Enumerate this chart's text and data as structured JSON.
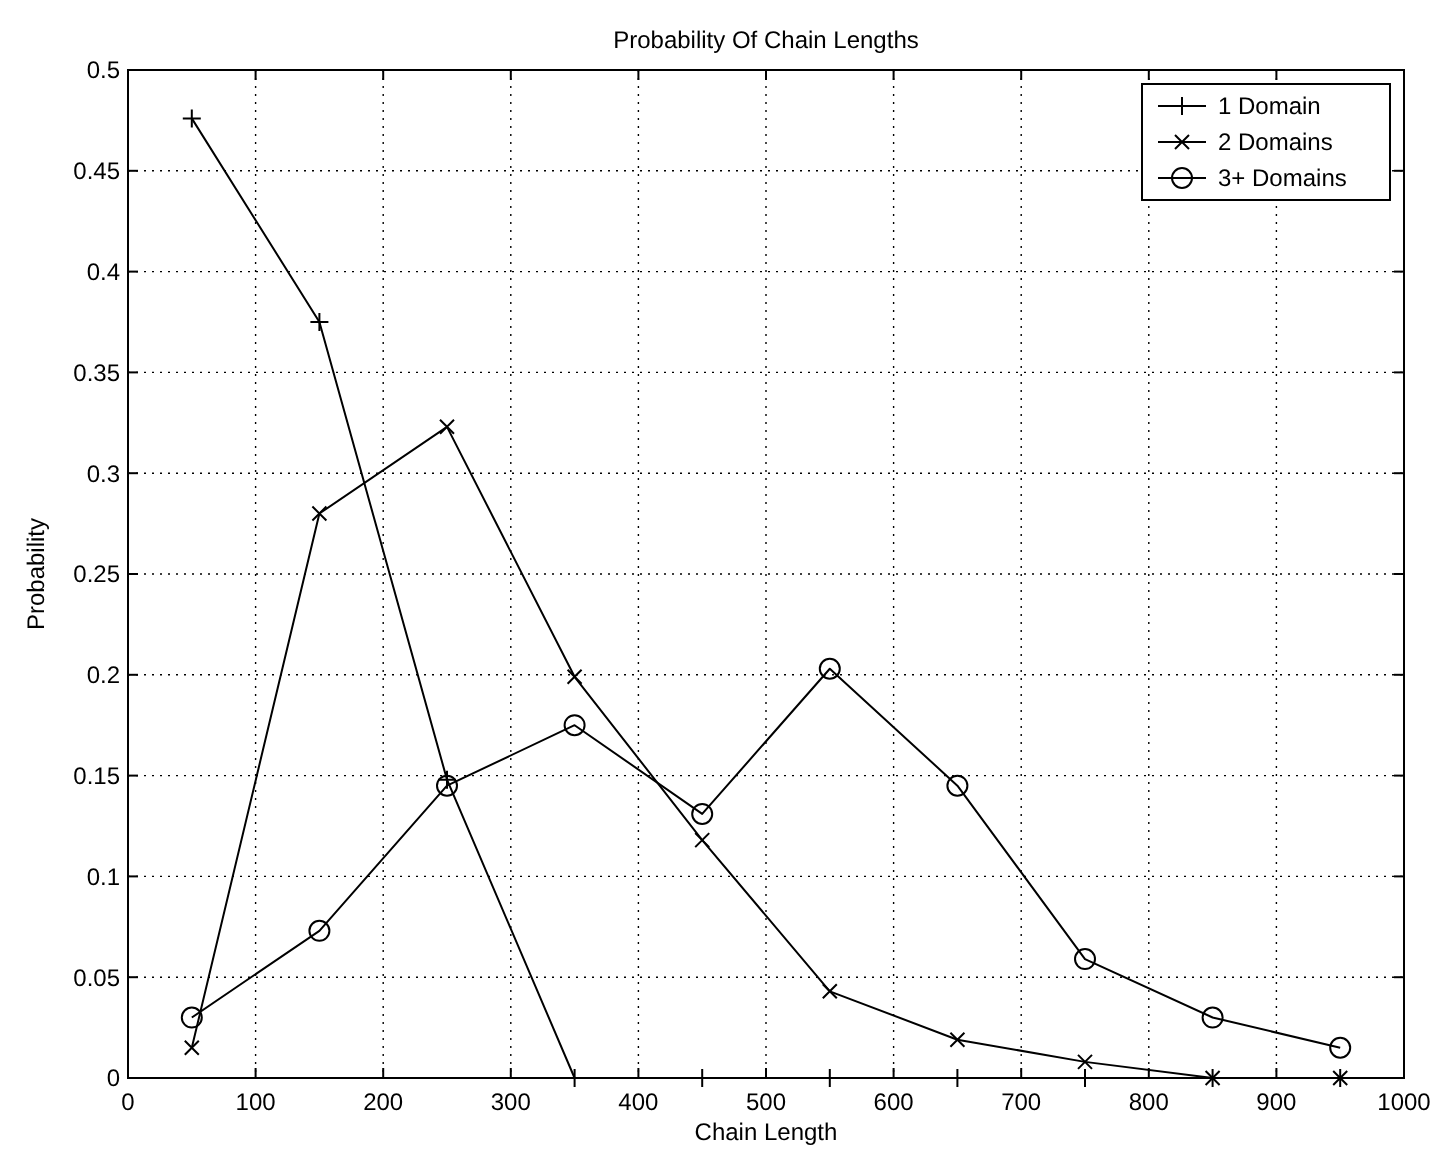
{
  "chart_data": {
    "type": "line",
    "title": "Probability Of Chain Lengths",
    "xlabel": "Chain Length",
    "ylabel": "Probability",
    "x": [
      50,
      150,
      250,
      350,
      450,
      550,
      650,
      750,
      850,
      950
    ],
    "series": [
      {
        "name": "1 Domain",
        "color": "#000000",
        "marker": "cross",
        "values": [
          0.476,
          0.375,
          0.148,
          0,
          0,
          0,
          0,
          0,
          0,
          0
        ]
      },
      {
        "name": "2 Domains",
        "color": "#000000",
        "marker": "x",
        "values": [
          0.015,
          0.28,
          0.323,
          0.199,
          0.118,
          0.043,
          0.019,
          0.008,
          0,
          0
        ]
      },
      {
        "name": "3+ Domains",
        "color": "#000000",
        "marker": "circle",
        "values": [
          0.03,
          0.073,
          0.145,
          0.175,
          0.131,
          0.203,
          0.145,
          0.059,
          0.03,
          0.015
        ]
      }
    ],
    "xlim": [
      0,
      1000
    ],
    "xticks": [
      0,
      100,
      200,
      300,
      400,
      500,
      600,
      700,
      800,
      900,
      1000
    ],
    "ylim": [
      0,
      0.5
    ],
    "yticks": [
      0,
      0.05,
      0.1,
      0.15,
      0.2,
      0.25,
      0.3,
      0.35,
      0.4,
      0.45,
      0.5
    ],
    "grid": true,
    "legend": "top right",
    "line_style": "solid"
  }
}
